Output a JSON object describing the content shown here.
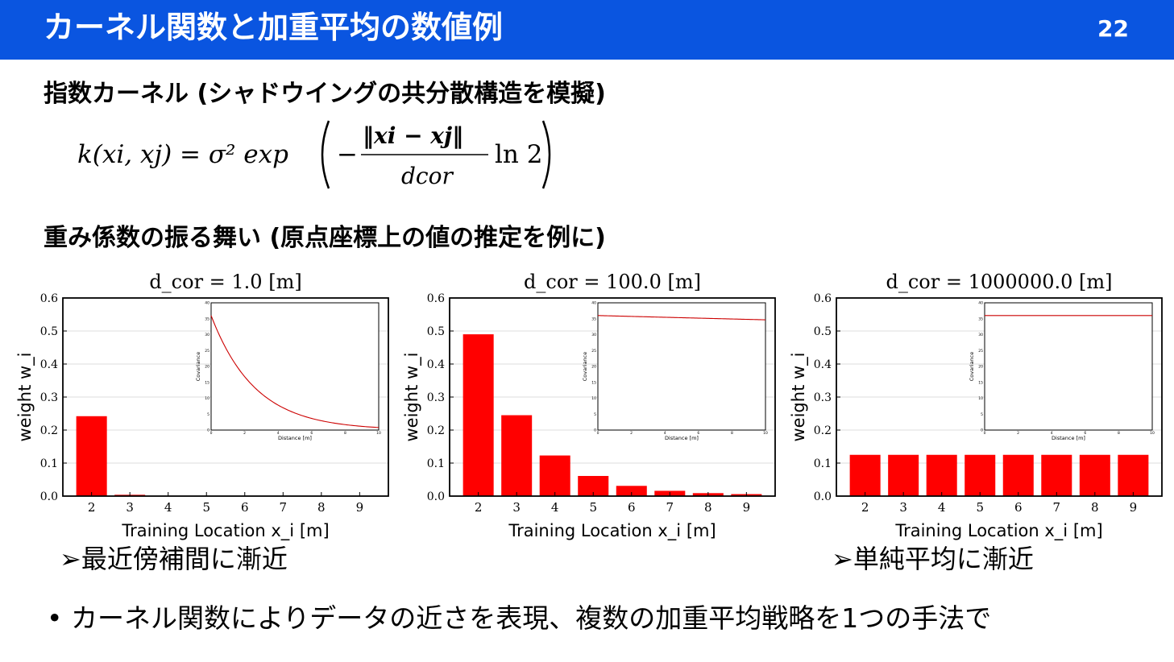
{
  "header": {
    "title": "カーネル関数と加重平均の数値例",
    "page_number": "22",
    "color": "#0a55e0"
  },
  "section1": {
    "heading": "指数カーネル (シャドウイングの共分散構造を模擬)"
  },
  "formula": {
    "lhs": "k(xi, xj) = σ² exp",
    "numerator": "‖xi − xj‖",
    "denominator": "dcor",
    "tail": "ln 2"
  },
  "section2": {
    "heading": "重み係数の振る舞い (原点座標上の値の推定を例に)"
  },
  "notes": {
    "left": "➢最近傍補間に漸近",
    "right": "➢単純平均に漸近"
  },
  "bullet": {
    "text": "• カーネル関数によりデータの近さを表現、複数の加重平均戦略を1つの手法で"
  },
  "chart_data": [
    {
      "type": "bar",
      "title": "d_cor = 1.0 [m]",
      "xlabel": "Training Location x_i [m]",
      "ylabel": "weight w_i",
      "categories": [
        "2",
        "3",
        "4",
        "5",
        "6",
        "7",
        "8",
        "9"
      ],
      "values": [
        0.242,
        0.004,
        0.0,
        0.0,
        0.0,
        0.0,
        0.0,
        0.0
      ],
      "ylim": [
        0,
        0.6
      ],
      "yticks": [
        "0.0",
        "0.1",
        "0.2",
        "0.3",
        "0.4",
        "0.5",
        "0.6"
      ],
      "grid": true,
      "color": "#ff0000",
      "inset": {
        "type": "line",
        "xlabel": "Distance [m]",
        "ylabel": "Covariance",
        "xlim": [
          0,
          10
        ],
        "ylim": [
          0,
          40
        ],
        "xticks": [
          "0",
          "2",
          "4",
          "6",
          "8",
          "10"
        ],
        "yticks": [
          "0",
          "5",
          "10",
          "15",
          "20",
          "25",
          "30",
          "35",
          "40"
        ],
        "start_value": 36,
        "d_cor": 1.0,
        "color": "#cc0000"
      }
    },
    {
      "type": "bar",
      "title": "d_cor = 100.0 [m]",
      "xlabel": "Training Location x_i [m]",
      "ylabel": "weight w_i",
      "categories": [
        "2",
        "3",
        "4",
        "5",
        "6",
        "7",
        "8",
        "9"
      ],
      "values": [
        0.49,
        0.245,
        0.123,
        0.061,
        0.031,
        0.016,
        0.009,
        0.006
      ],
      "ylim": [
        0,
        0.6
      ],
      "yticks": [
        "0.0",
        "0.1",
        "0.2",
        "0.3",
        "0.4",
        "0.5",
        "0.6"
      ],
      "grid": true,
      "color": "#ff0000",
      "inset": {
        "type": "line",
        "xlabel": "Distance [m]",
        "ylabel": "Covariance",
        "xlim": [
          0,
          10
        ],
        "ylim": [
          0,
          40
        ],
        "xticks": [
          "0",
          "2",
          "4",
          "6",
          "8",
          "10"
        ],
        "yticks": [
          "0",
          "5",
          "10",
          "15",
          "20",
          "25",
          "30",
          "35",
          "40"
        ],
        "start_value": 36,
        "d_cor": 100.0,
        "color": "#cc0000"
      }
    },
    {
      "type": "bar",
      "title": "d_cor = 1000000.0 [m]",
      "xlabel": "Training Location x_i [m]",
      "ylabel": "weight w_i",
      "categories": [
        "2",
        "3",
        "4",
        "5",
        "6",
        "7",
        "8",
        "9"
      ],
      "values": [
        0.125,
        0.125,
        0.125,
        0.125,
        0.125,
        0.125,
        0.125,
        0.125
      ],
      "ylim": [
        0,
        0.6
      ],
      "yticks": [
        "0.0",
        "0.1",
        "0.2",
        "0.3",
        "0.4",
        "0.5",
        "0.6"
      ],
      "grid": true,
      "color": "#ff0000",
      "inset": {
        "type": "line",
        "xlabel": "Distance [m]",
        "ylabel": "Covariance",
        "xlim": [
          0,
          10
        ],
        "ylim": [
          0,
          40
        ],
        "xticks": [
          "0",
          "2",
          "4",
          "6",
          "8",
          "10"
        ],
        "yticks": [
          "0",
          "5",
          "10",
          "15",
          "20",
          "25",
          "30",
          "35",
          "40"
        ],
        "start_value": 36,
        "d_cor": 1000000.0,
        "color": "#cc0000"
      }
    }
  ]
}
